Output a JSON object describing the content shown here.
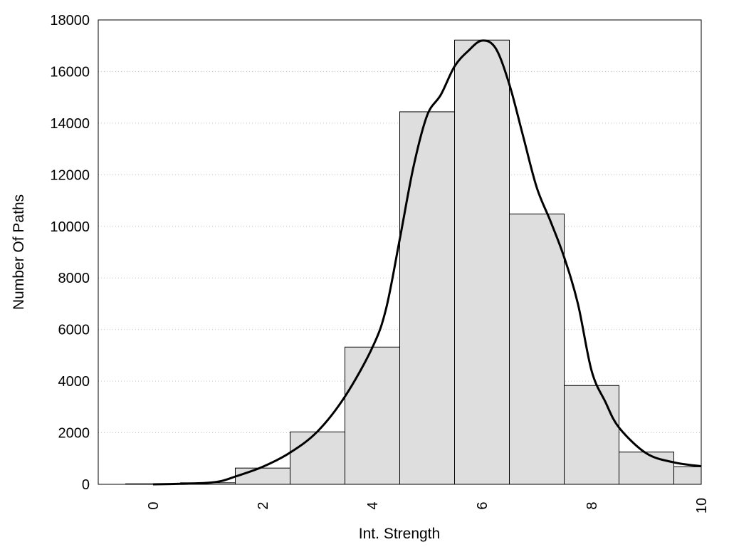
{
  "chart_data": {
    "type": "bar",
    "title": "",
    "xlabel": "Int. Strength",
    "ylabel": "Number Of Paths",
    "xlim": [
      -1,
      10
    ],
    "ylim": [
      0,
      18000
    ],
    "grid": "horizontal dotted",
    "legend": "none",
    "bar_color": "#dedede",
    "line_color": "#000000",
    "x_ticks": [
      "0",
      "2",
      "4",
      "6",
      "8",
      "10"
    ],
    "y_ticks": [
      "0",
      "2000",
      "4000",
      "6000",
      "8000",
      "10000",
      "12000",
      "14000",
      "16000",
      "18000"
    ],
    "series": [
      {
        "type": "bar",
        "x": [
          0,
          1,
          2,
          3,
          4,
          5,
          6,
          7,
          8,
          9,
          10
        ],
        "values": [
          20,
          60,
          630,
          2030,
          5320,
          14440,
          17220,
          10480,
          3830,
          1250,
          680
        ]
      },
      {
        "type": "line",
        "x": [
          0,
          0.5,
          1,
          1.25,
          1.5,
          2,
          2.5,
          3,
          3.5,
          4,
          4.25,
          4.5,
          4.75,
          5,
          5.25,
          5.5,
          5.75,
          6,
          6.25,
          6.5,
          6.75,
          7,
          7.25,
          7.5,
          7.75,
          8,
          8.25,
          8.5,
          9,
          9.5,
          10
        ],
        "values": [
          0,
          20,
          60,
          130,
          300,
          680,
          1230,
          2050,
          3400,
          5300,
          6800,
          9500,
          12300,
          14300,
          15100,
          16200,
          16800,
          17200,
          16900,
          15500,
          13500,
          11500,
          10200,
          8800,
          7000,
          4400,
          3200,
          2200,
          1200,
          850,
          700
        ]
      }
    ]
  }
}
